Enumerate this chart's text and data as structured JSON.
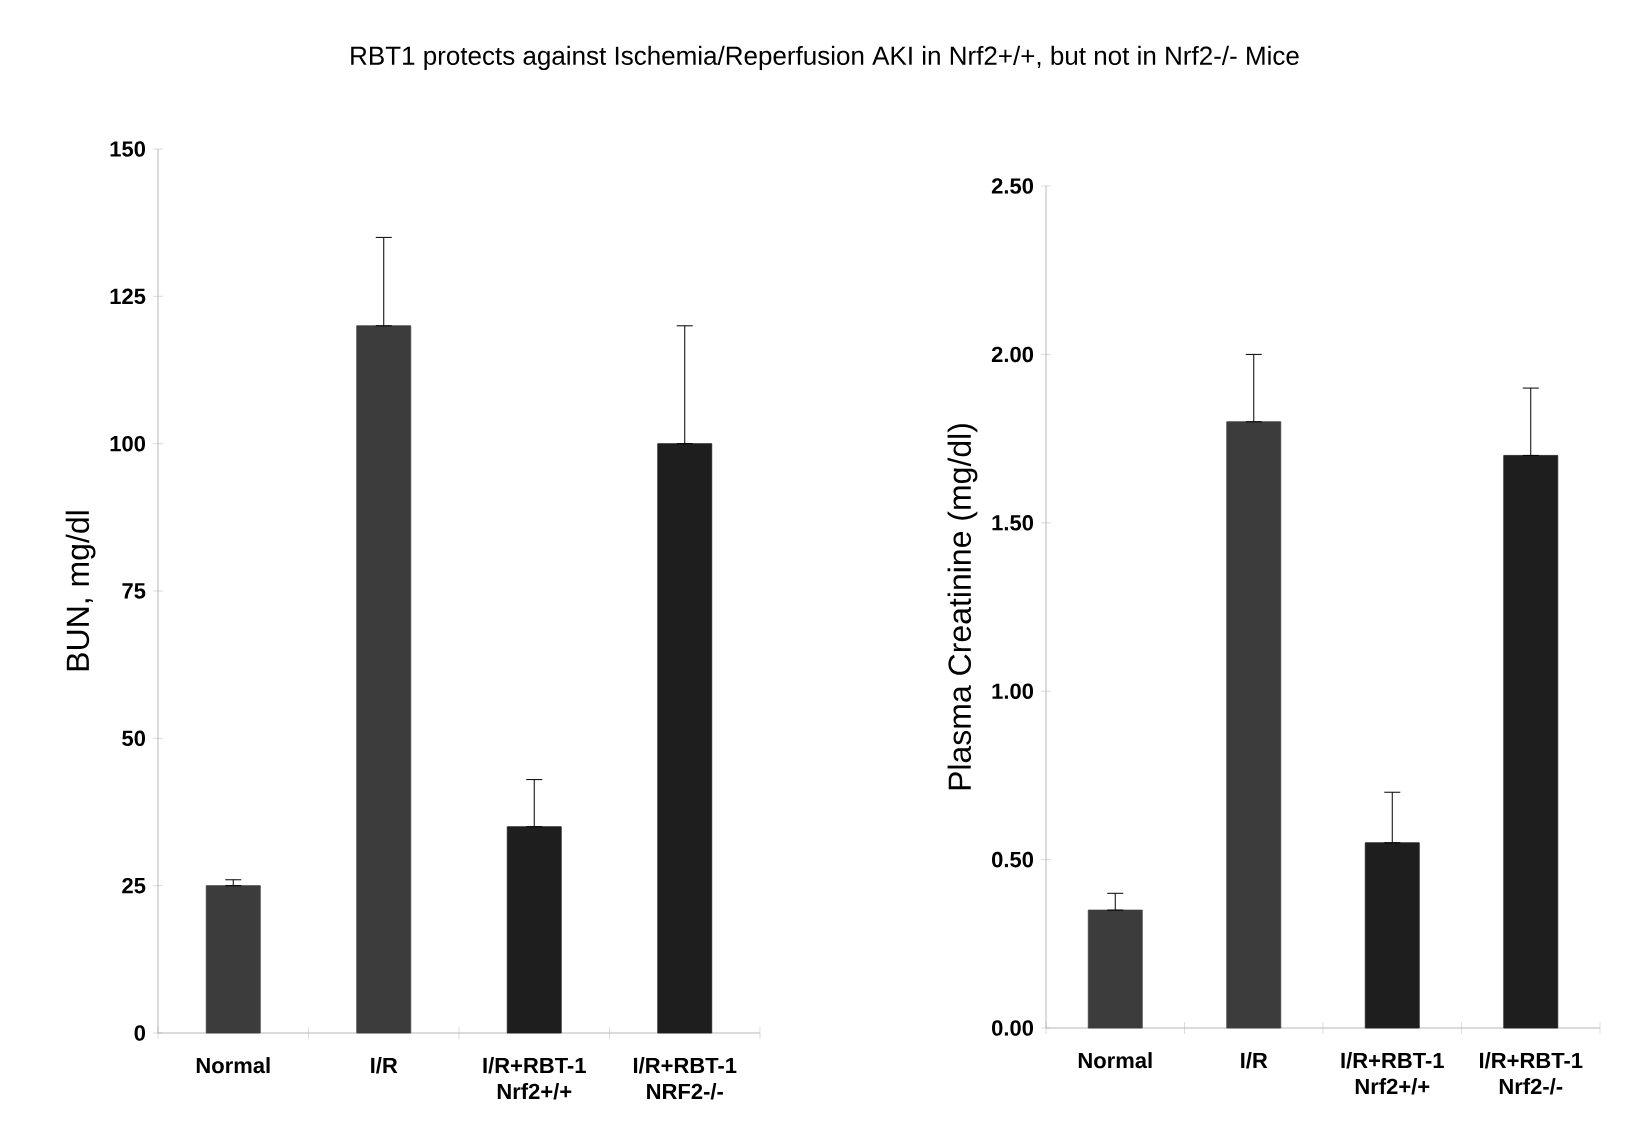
{
  "chart_data": [
    {
      "type": "bar",
      "title": "RBT1 protects against Ischemia/Reperfusion AKI in Nrf2+/+, but not in Nrf2-/- Mice",
      "ylabel": "BUN, mg/dl",
      "categories": [
        "Normal",
        "I/R",
        "I/R+RBT-1 Nrf2+/+",
        "I/R+RBT-1 NRF2-/-"
      ],
      "values": [
        25,
        120,
        35,
        100
      ],
      "errors": [
        [
          25,
          26
        ],
        [
          120,
          135
        ],
        [
          35,
          43
        ],
        [
          100,
          120
        ]
      ],
      "colors": [
        "#3c3c3c",
        "#3c3c3c",
        "#1e1e1e",
        "#1e1e1e"
      ],
      "ylim": [
        0,
        150
      ],
      "yticks": [
        0,
        25,
        50,
        75,
        100,
        125,
        150
      ]
    },
    {
      "type": "bar",
      "ylabel": "Plasma Creatinine (mg/dl)",
      "categories": [
        "Normal",
        "I/R",
        "I/R+RBT-1 Nrf2+/+",
        "I/R+RBT-1 Nrf2-/-"
      ],
      "values": [
        0.35,
        1.8,
        0.55,
        1.7
      ],
      "errors": [
        [
          0.35,
          0.4
        ],
        [
          1.8,
          2.0
        ],
        [
          0.55,
          0.7
        ],
        [
          1.7,
          1.9
        ]
      ],
      "colors": [
        "#3c3c3c",
        "#3c3c3c",
        "#1e1e1e",
        "#1e1e1e"
      ],
      "ylim": [
        0,
        2.5
      ],
      "yticks": [
        {
          "value": 0,
          "label": "0.00"
        },
        {
          "value": 0.5,
          "label": "0.50"
        },
        {
          "value": 1,
          "label": "1.00"
        },
        {
          "value": 1.5,
          "label": "1.50"
        },
        {
          "value": 2,
          "label": "2.00"
        },
        {
          "value": 2.5,
          "label": "2.50"
        }
      ]
    }
  ]
}
